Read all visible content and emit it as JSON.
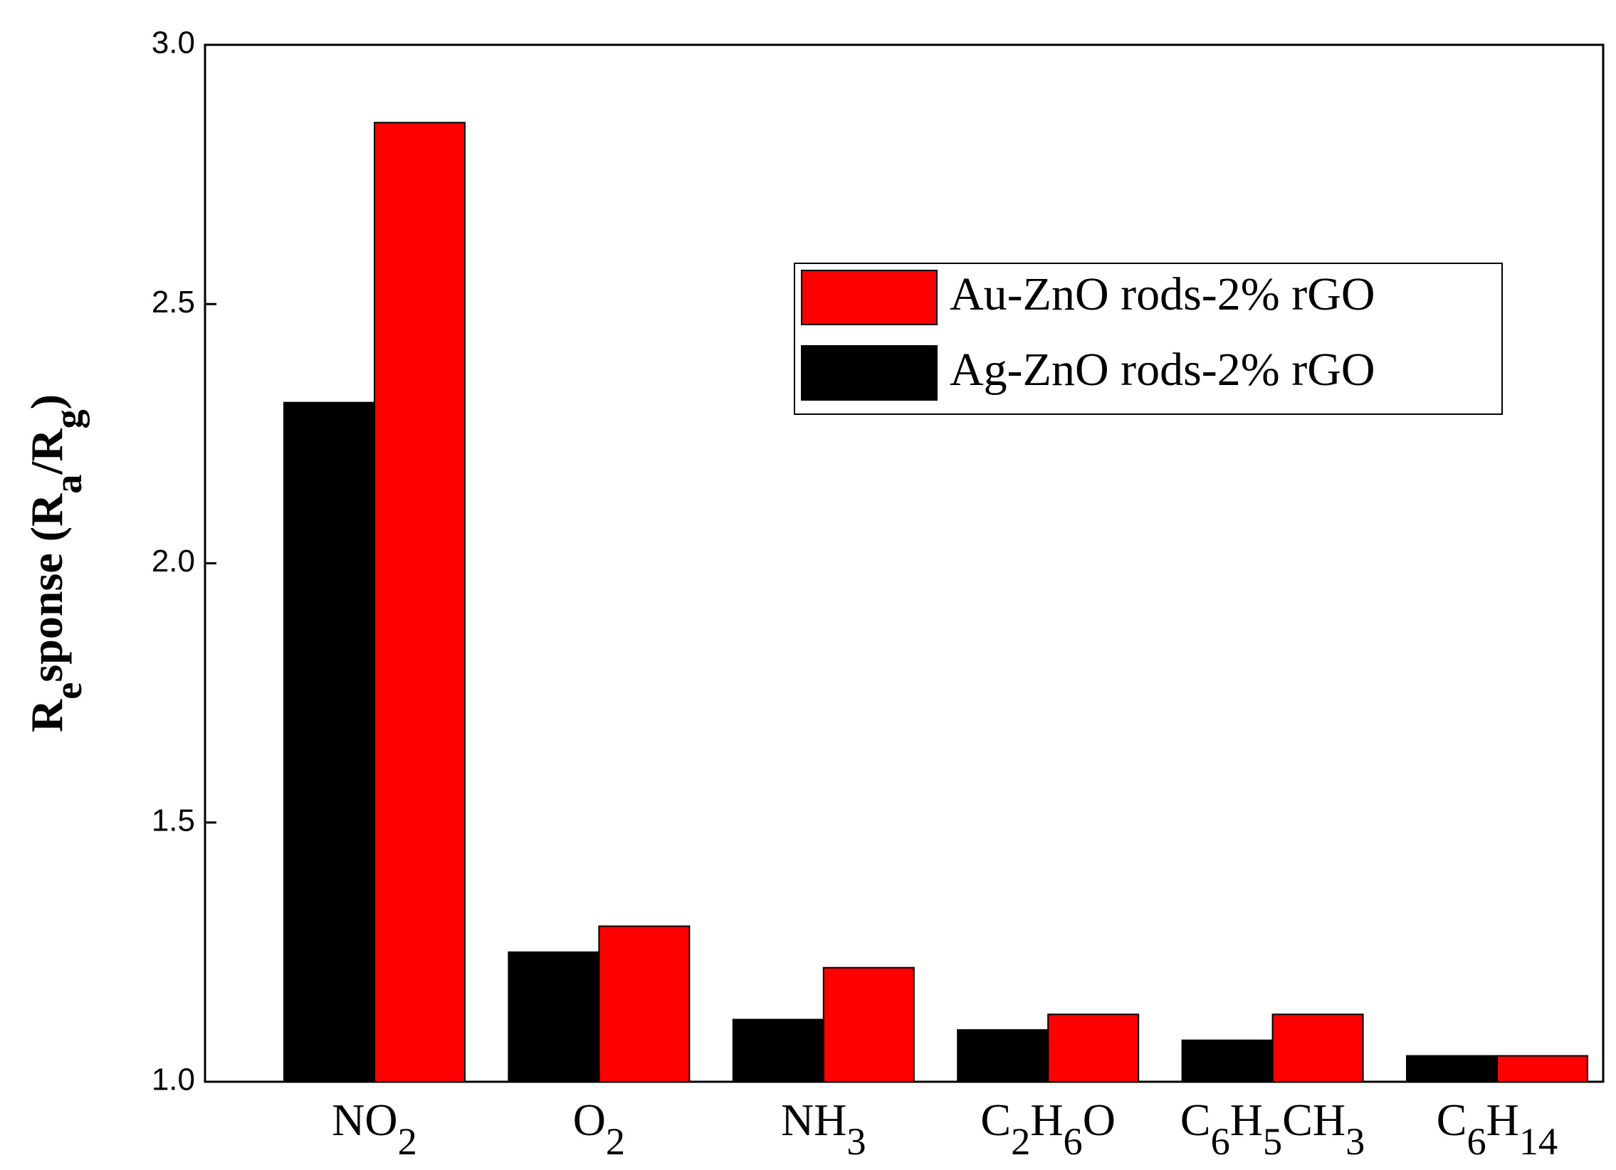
{
  "chart_data": {
    "type": "bar",
    "y_label": "Response (Ra/Rg)",
    "categories": [
      "NO2",
      "O2",
      "NH3",
      "C2H6O",
      "C6H5CH3",
      "C6H14"
    ],
    "series": [
      {
        "name": "Au-ZnO rods-2% rGO",
        "color": "#ff0000",
        "values": [
          2.85,
          1.3,
          1.22,
          1.13,
          1.13,
          1.05
        ]
      },
      {
        "name": "Ag-ZnO rods-2% rGO",
        "color": "#000000",
        "values": [
          2.31,
          1.25,
          1.12,
          1.1,
          1.08,
          1.05
        ]
      }
    ],
    "ylim": [
      1.0,
      3.0
    ],
    "yticks": [
      {
        "value": 1.0,
        "label": "1.0"
      },
      1.5,
      {
        "value": 2.0,
        "label": "2.0"
      },
      2.5,
      {
        "value": 3.0,
        "label": "3.0"
      }
    ],
    "legend": "upper right",
    "grid": false
  }
}
